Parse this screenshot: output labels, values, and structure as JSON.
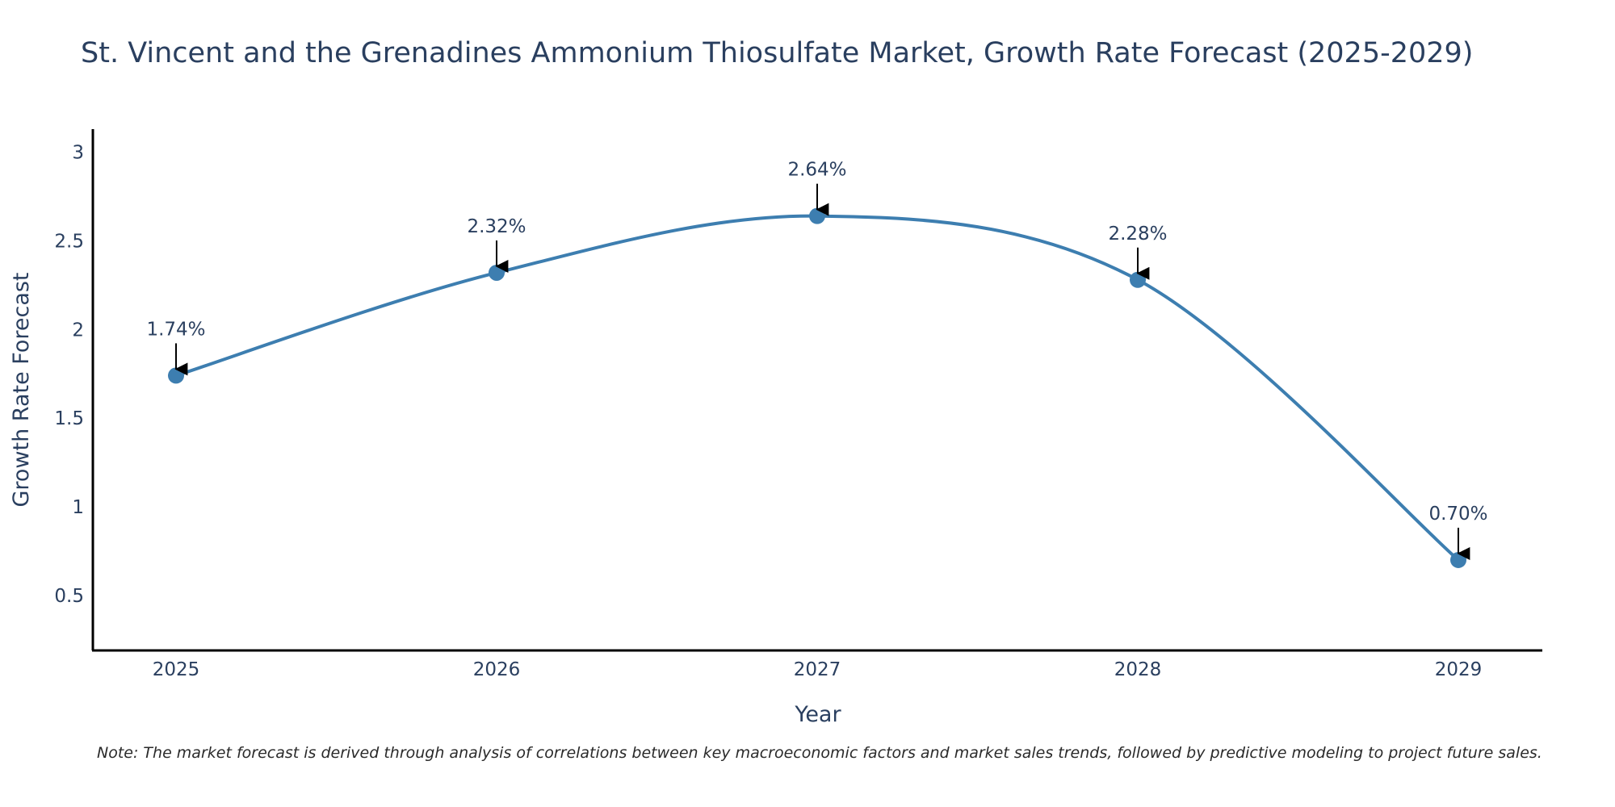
{
  "chart_data": {
    "type": "line",
    "title": "St. Vincent and the Grenadines Ammonium Thiosulfate Market, Growth Rate Forecast (2025-2029)",
    "xlabel": "Year",
    "ylabel": "Growth Rate Forecast",
    "categories": [
      "2025",
      "2026",
      "2027",
      "2028",
      "2029"
    ],
    "series": [
      {
        "name": "Growth Rate Forecast",
        "values": [
          1.74,
          2.32,
          2.64,
          2.28,
          0.7
        ],
        "labels": [
          "1.74%",
          "2.32%",
          "2.64%",
          "2.28%",
          "0.70%"
        ]
      }
    ],
    "yticks": [
      "0.5",
      "1",
      "1.5",
      "2",
      "2.5",
      "3"
    ],
    "ylim": [
      0.19,
      3.13
    ],
    "grid": false,
    "legend": "none",
    "line_color": "#3d7eb0",
    "note": "Note: The market forecast is derived through analysis of correlations between key macroeconomic factors and market sales trends, followed by predictive modeling to project future sales."
  }
}
